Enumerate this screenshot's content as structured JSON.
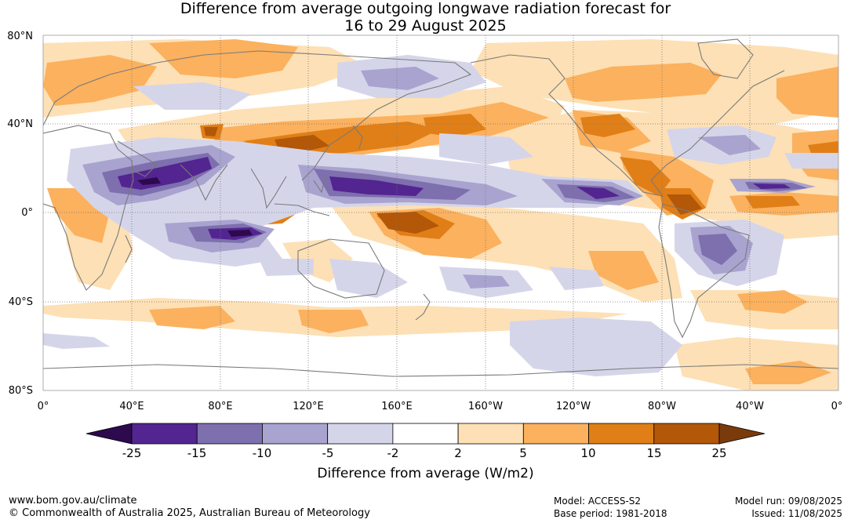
{
  "title": {
    "line1": "Difference from average outgoing longwave radiation forecast for",
    "line2": "16 to 29 August 2025"
  },
  "map": {
    "lat_ticks": [
      "80°N",
      "40°N",
      "0°",
      "40°S",
      "80°S"
    ],
    "lon_ticks": [
      "0°",
      "40°E",
      "80°E",
      "120°E",
      "160°E",
      "160°W",
      "120°W",
      "80°W",
      "40°W",
      "0°"
    ]
  },
  "colorbar": {
    "title": "Difference from average (W/m2)",
    "labels": [
      "-25",
      "-15",
      "-10",
      "-5",
      "-2",
      "2",
      "5",
      "10",
      "15",
      "25"
    ],
    "colors": {
      "below_min": "#2d0a4e",
      "bins": [
        "#532590",
        "#7e6fae",
        "#a9a3cf",
        "#d5d5ea",
        "#ffffff",
        "#fde0b5",
        "#fbb15e",
        "#e07f17",
        "#b35708"
      ],
      "above_max": "#7a3b0c"
    }
  },
  "footer": {
    "website": "www.bom.gov.au/climate",
    "copyright": "© Commonwealth of Australia 2025, Australian Bureau of Meteorology",
    "model": "Model: ACCESS-S2",
    "base_period": "Base period: 1981-2018",
    "model_run": "Model run: 09/08/2025",
    "issued": "Issued: 11/08/2025"
  }
}
